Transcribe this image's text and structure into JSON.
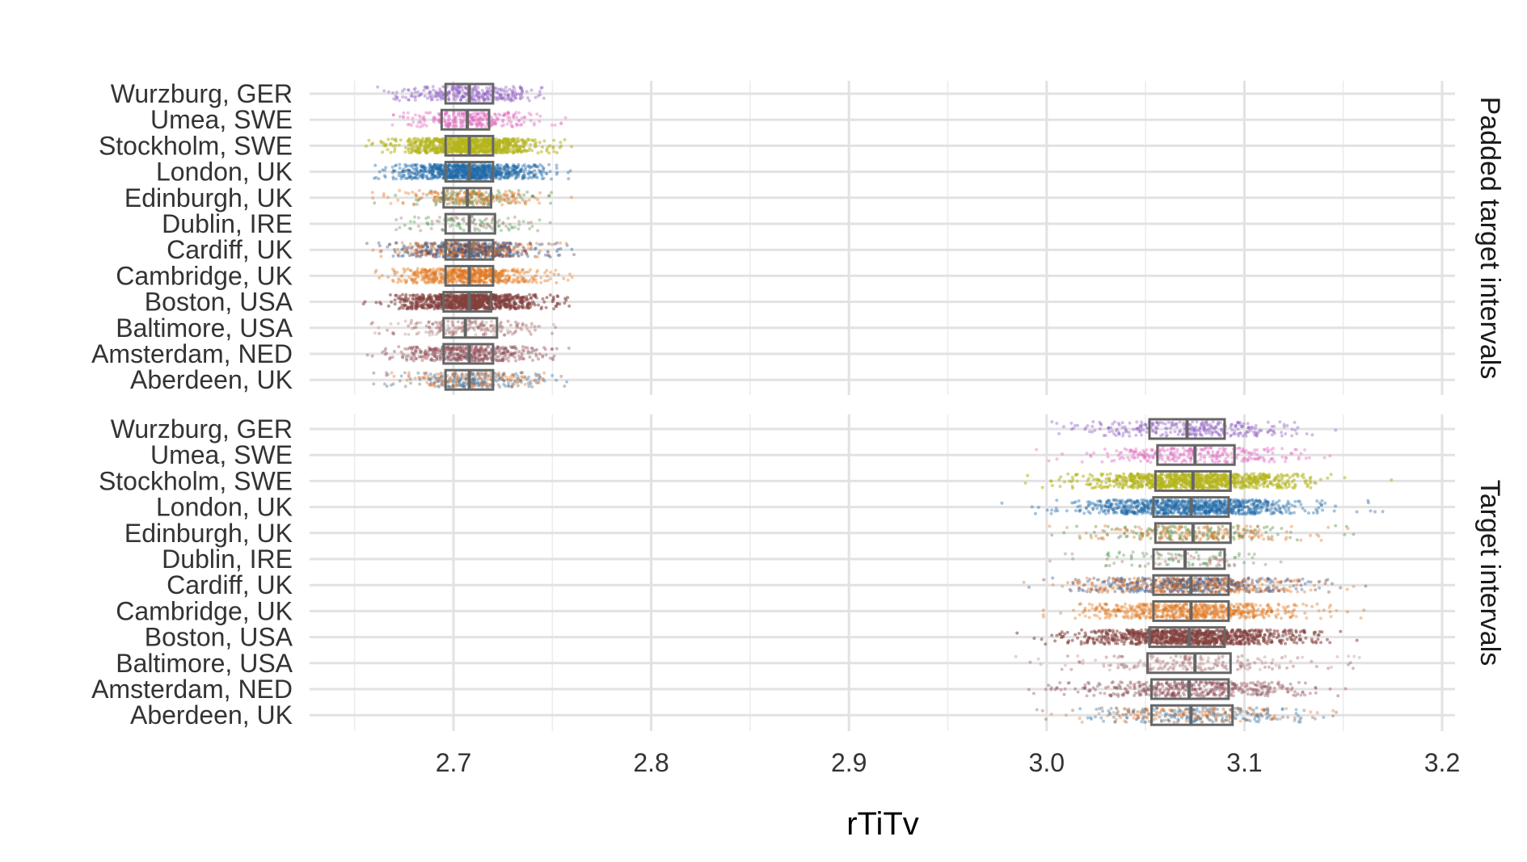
{
  "chart_data": {
    "type": "boxplot-jitter",
    "xlabel": "rTiTv",
    "ylabel": "",
    "xlim": [
      2.65,
      3.21
    ],
    "x_ticks": [
      "2.7",
      "2.8",
      "2.9",
      "3.0",
      "3.1",
      "3.2"
    ],
    "grid": true,
    "legend": "none",
    "categories": [
      "Wurzburg, GER",
      "Umea, SWE",
      "Stockholm, SWE",
      "London, UK",
      "Edinburgh, UK",
      "Dublin, IRE",
      "Cardiff, UK",
      "Cambridge, UK",
      "Boston, USA",
      "Baltimore, USA",
      "Amsterdam, NED",
      "Aberdeen, UK"
    ],
    "colors": {
      "Wurzburg, GER": [
        "#8e5cc2"
      ],
      "Umea, SWE": [
        "#e06ac0"
      ],
      "Stockholm, SWE": [
        "#b5b51c"
      ],
      "London, UK": [
        "#1f6aa8"
      ],
      "Edinburgh, UK": [
        "#e8772a",
        "#5f8a3a"
      ],
      "Dublin, IRE": [
        "#5aa05a",
        "#b07070"
      ],
      "Cardiff, UK": [
        "#2f6098",
        "#e27528",
        "#7a4440"
      ],
      "Cambridge, UK": [
        "#ee7b1a",
        "#d4701f"
      ],
      "Boston, USA": [
        "#84403c"
      ],
      "Baltimore, USA": [
        "#9b6060",
        "#c09090"
      ],
      "Amsterdam, NED": [
        "#a14d52",
        "#7a5060"
      ],
      "Aberdeen, UK": [
        "#3579b0",
        "#e8772a",
        "#8c6a5a"
      ]
    },
    "panels": [
      {
        "strip": "Padded target intervals",
        "groups": [
          {
            "name": "Wurzburg, GER",
            "q1": 2.696,
            "median": 2.708,
            "q3": 2.72,
            "min": 2.659,
            "max": 2.758,
            "n": 300
          },
          {
            "name": "Umea, SWE",
            "q1": 2.694,
            "median": 2.707,
            "q3": 2.718,
            "min": 2.654,
            "max": 2.758,
            "n": 280
          },
          {
            "name": "Stockholm, SWE",
            "q1": 2.696,
            "median": 2.708,
            "q3": 2.72,
            "min": 2.655,
            "max": 2.761,
            "n": 2200
          },
          {
            "name": "London, UK",
            "q1": 2.696,
            "median": 2.708,
            "q3": 2.72,
            "min": 2.657,
            "max": 2.762,
            "n": 900
          },
          {
            "name": "Edinburgh, UK",
            "q1": 2.695,
            "median": 2.707,
            "q3": 2.719,
            "min": 2.658,
            "max": 2.76,
            "n": 300
          },
          {
            "name": "Dublin, IRE",
            "q1": 2.696,
            "median": 2.708,
            "q3": 2.721,
            "min": 2.668,
            "max": 2.755,
            "n": 120
          },
          {
            "name": "Cardiff, UK",
            "q1": 2.696,
            "median": 2.708,
            "q3": 2.72,
            "min": 2.656,
            "max": 2.761,
            "n": 700
          },
          {
            "name": "Cambridge, UK",
            "q1": 2.696,
            "median": 2.708,
            "q3": 2.72,
            "min": 2.657,
            "max": 2.76,
            "n": 600
          },
          {
            "name": "Boston, USA",
            "q1": 2.695,
            "median": 2.708,
            "q3": 2.719,
            "min": 2.654,
            "max": 2.76,
            "n": 1300
          },
          {
            "name": "Baltimore, USA",
            "q1": 2.695,
            "median": 2.706,
            "q3": 2.722,
            "min": 2.658,
            "max": 2.752,
            "n": 200
          },
          {
            "name": "Amsterdam, NED",
            "q1": 2.695,
            "median": 2.708,
            "q3": 2.72,
            "min": 2.654,
            "max": 2.761,
            "n": 450
          },
          {
            "name": "Aberdeen, UK",
            "q1": 2.696,
            "median": 2.708,
            "q3": 2.72,
            "min": 2.659,
            "max": 2.76,
            "n": 350
          }
        ]
      },
      {
        "strip": "Target intervals",
        "groups": [
          {
            "name": "Wurzburg, GER",
            "q1": 3.052,
            "median": 3.071,
            "q3": 3.09,
            "min": 2.995,
            "max": 3.15,
            "n": 300
          },
          {
            "name": "Umea, SWE",
            "q1": 3.056,
            "median": 3.075,
            "q3": 3.095,
            "min": 2.99,
            "max": 3.155,
            "n": 280
          },
          {
            "name": "Stockholm, SWE",
            "q1": 3.055,
            "median": 3.074,
            "q3": 3.093,
            "min": 2.97,
            "max": 3.175,
            "n": 2200
          },
          {
            "name": "London, UK",
            "q1": 3.054,
            "median": 3.073,
            "q3": 3.092,
            "min": 2.975,
            "max": 3.17,
            "n": 900
          },
          {
            "name": "Edinburgh, UK",
            "q1": 3.055,
            "median": 3.074,
            "q3": 3.093,
            "min": 2.99,
            "max": 3.16,
            "n": 300
          },
          {
            "name": "Dublin, IRE",
            "q1": 3.054,
            "median": 3.07,
            "q3": 3.09,
            "min": 3.0,
            "max": 3.14,
            "n": 120
          },
          {
            "name": "Cardiff, UK",
            "q1": 3.054,
            "median": 3.073,
            "q3": 3.092,
            "min": 2.96,
            "max": 3.165,
            "n": 700
          },
          {
            "name": "Cambridge, UK",
            "q1": 3.054,
            "median": 3.073,
            "q3": 3.092,
            "min": 2.98,
            "max": 3.165,
            "n": 600
          },
          {
            "name": "Boston, USA",
            "q1": 3.052,
            "median": 3.072,
            "q3": 3.09,
            "min": 2.968,
            "max": 3.185,
            "n": 1300
          },
          {
            "name": "Baltimore, USA",
            "q1": 3.051,
            "median": 3.075,
            "q3": 3.093,
            "min": 2.97,
            "max": 3.16,
            "n": 200
          },
          {
            "name": "Amsterdam, NED",
            "q1": 3.053,
            "median": 3.072,
            "q3": 3.092,
            "min": 2.97,
            "max": 3.165,
            "n": 450
          },
          {
            "name": "Aberdeen, UK",
            "q1": 3.053,
            "median": 3.073,
            "q3": 3.094,
            "min": 2.99,
            "max": 3.155,
            "n": 350
          }
        ]
      }
    ]
  }
}
